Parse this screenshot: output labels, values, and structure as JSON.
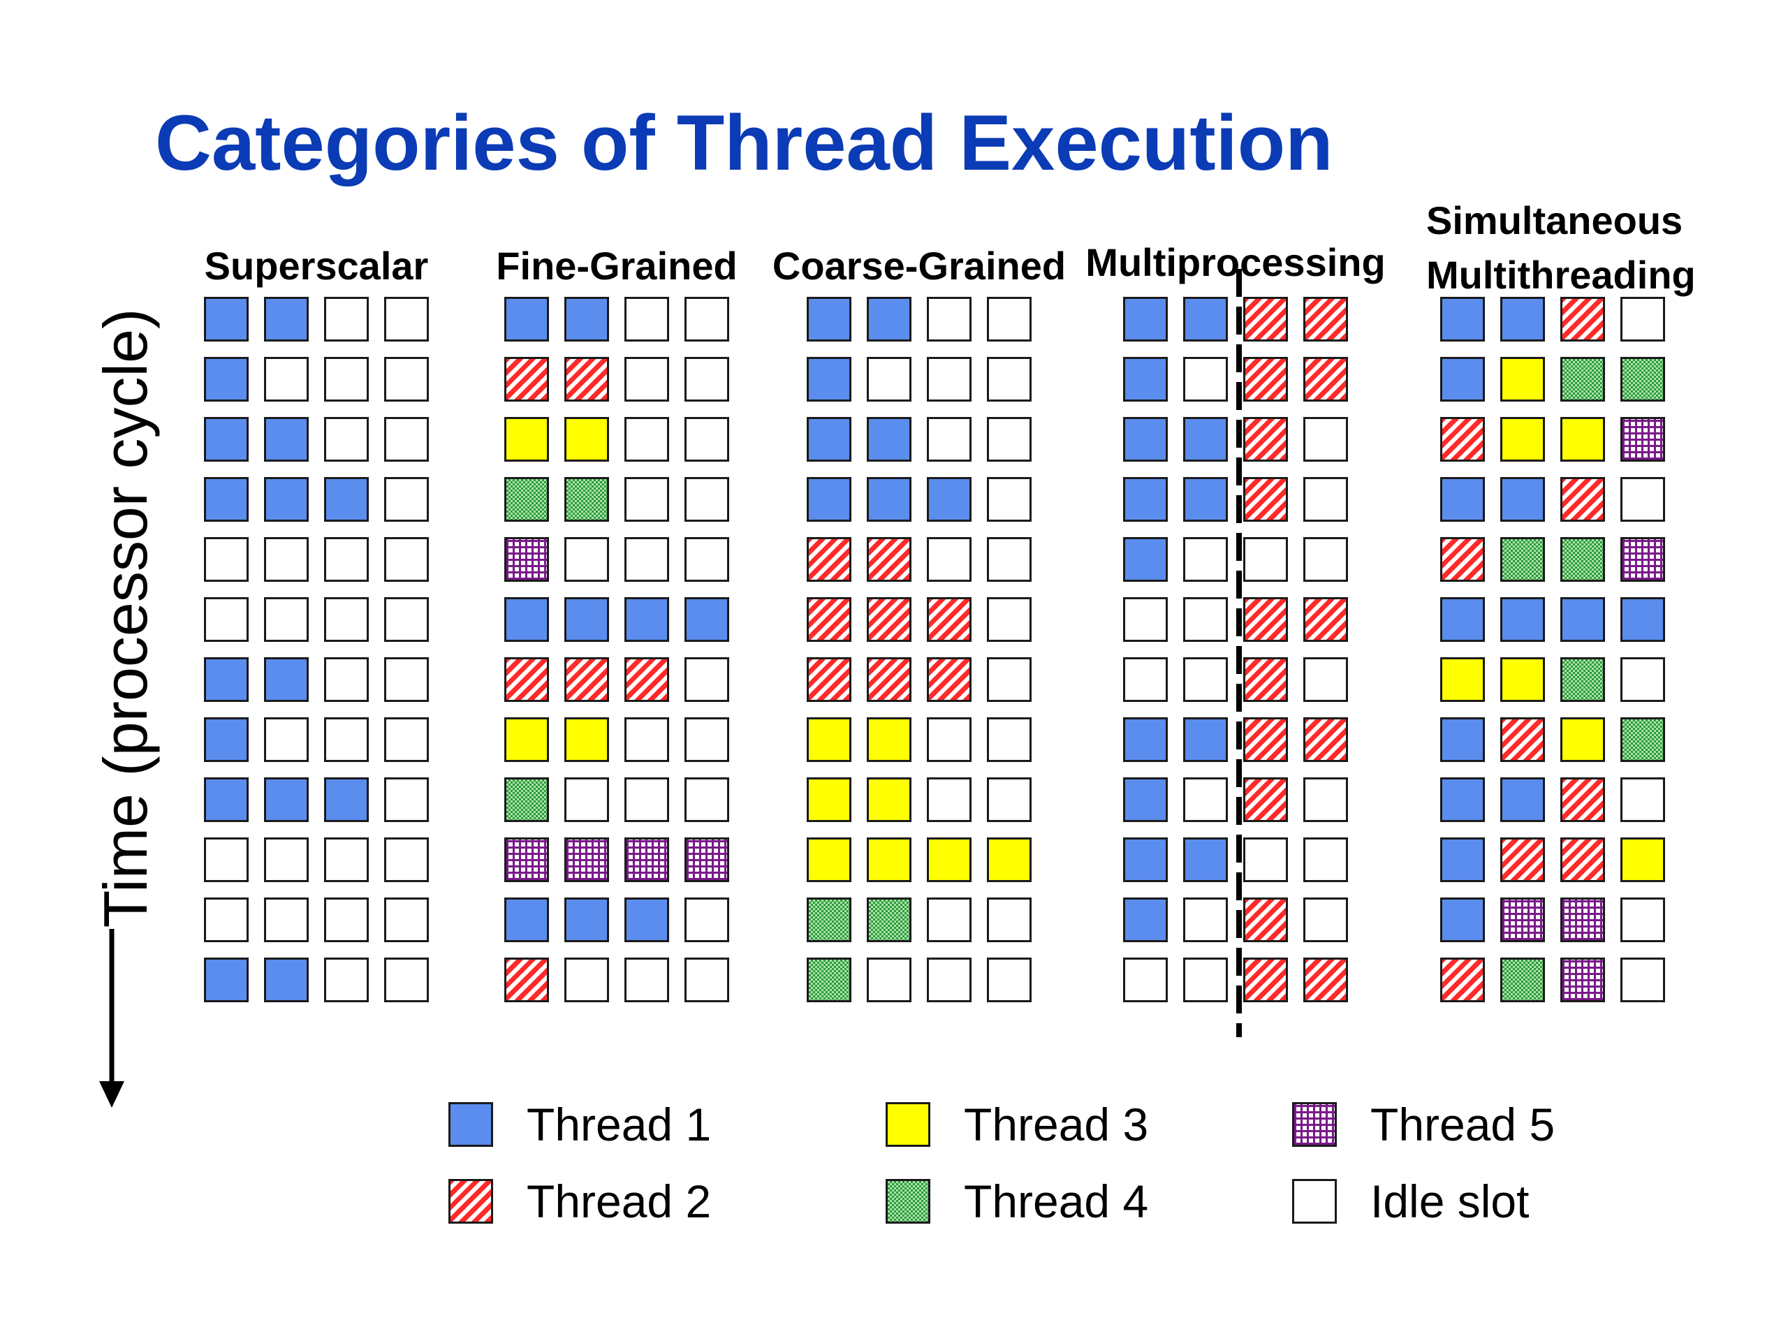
{
  "title": "Categories of Thread Execution",
  "time_axis_label": "Time (processor cycle)",
  "panels": [
    {
      "title": "Superscalar",
      "rows": [
        [
          "t1",
          "t1",
          "idle",
          "idle"
        ],
        [
          "t1",
          "idle",
          "idle",
          "idle"
        ],
        [
          "t1",
          "t1",
          "idle",
          "idle"
        ],
        [
          "t1",
          "t1",
          "t1",
          "idle"
        ],
        [
          "idle",
          "idle",
          "idle",
          "idle"
        ],
        [
          "idle",
          "idle",
          "idle",
          "idle"
        ],
        [
          "t1",
          "t1",
          "idle",
          "idle"
        ],
        [
          "t1",
          "idle",
          "idle",
          "idle"
        ],
        [
          "t1",
          "t1",
          "t1",
          "idle"
        ],
        [
          "idle",
          "idle",
          "idle",
          "idle"
        ],
        [
          "idle",
          "idle",
          "idle",
          "idle"
        ],
        [
          "t1",
          "t1",
          "idle",
          "idle"
        ]
      ]
    },
    {
      "title": "Fine-Grained",
      "rows": [
        [
          "t1",
          "t1",
          "idle",
          "idle"
        ],
        [
          "t2",
          "t2",
          "idle",
          "idle"
        ],
        [
          "t3",
          "t3",
          "idle",
          "idle"
        ],
        [
          "t4",
          "t4",
          "idle",
          "idle"
        ],
        [
          "t5",
          "idle",
          "idle",
          "idle"
        ],
        [
          "t1",
          "t1",
          "t1",
          "t1"
        ],
        [
          "t2",
          "t2",
          "t2",
          "idle"
        ],
        [
          "t3",
          "t3",
          "idle",
          "idle"
        ],
        [
          "t4",
          "idle",
          "idle",
          "idle"
        ],
        [
          "t5",
          "t5",
          "t5",
          "t5"
        ],
        [
          "t1",
          "t1",
          "t1",
          "idle"
        ],
        [
          "t2",
          "idle",
          "idle",
          "idle"
        ]
      ]
    },
    {
      "title": "Coarse-Grained",
      "rows": [
        [
          "t1",
          "t1",
          "idle",
          "idle"
        ],
        [
          "t1",
          "idle",
          "idle",
          "idle"
        ],
        [
          "t1",
          "t1",
          "idle",
          "idle"
        ],
        [
          "t1",
          "t1",
          "t1",
          "idle"
        ],
        [
          "t2",
          "t2",
          "idle",
          "idle"
        ],
        [
          "t2",
          "t2",
          "t2",
          "idle"
        ],
        [
          "t2",
          "t2",
          "t2",
          "idle"
        ],
        [
          "t3",
          "t3",
          "idle",
          "idle"
        ],
        [
          "t3",
          "t3",
          "idle",
          "idle"
        ],
        [
          "t3",
          "t3",
          "t3",
          "t3"
        ],
        [
          "t4",
          "t4",
          "idle",
          "idle"
        ],
        [
          "t4",
          "idle",
          "idle",
          "idle"
        ]
      ]
    },
    {
      "title": "Multiprocessing",
      "rows": [
        [
          "t1",
          "t1",
          "t2",
          "t2"
        ],
        [
          "t1",
          "idle",
          "t2",
          "t2"
        ],
        [
          "t1",
          "t1",
          "t2",
          "idle"
        ],
        [
          "t1",
          "t1",
          "t2",
          "idle"
        ],
        [
          "t1",
          "idle",
          "idle",
          "idle"
        ],
        [
          "idle",
          "idle",
          "t2",
          "t2"
        ],
        [
          "idle",
          "idle",
          "t2",
          "idle"
        ],
        [
          "t1",
          "t1",
          "t2",
          "t2"
        ],
        [
          "t1",
          "idle",
          "t2",
          "idle"
        ],
        [
          "t1",
          "t1",
          "idle",
          "idle"
        ],
        [
          "t1",
          "idle",
          "t2",
          "idle"
        ],
        [
          "idle",
          "idle",
          "t2",
          "t2"
        ]
      ]
    },
    {
      "title": "Simultaneous\nMultithreading",
      "title_line1": "Simultaneous",
      "title_line2": "Multithreading",
      "rows": [
        [
          "t1",
          "t1",
          "t2",
          "idle"
        ],
        [
          "t1",
          "t3",
          "t4",
          "t4"
        ],
        [
          "t2",
          "t3",
          "t3",
          "t5"
        ],
        [
          "t1",
          "t1",
          "t2",
          "idle"
        ],
        [
          "t2",
          "t4",
          "t4",
          "t5"
        ],
        [
          "t1",
          "t1",
          "t1",
          "t1"
        ],
        [
          "t3",
          "t3",
          "t4",
          "idle"
        ],
        [
          "t1",
          "t2",
          "t3",
          "t4"
        ],
        [
          "t1",
          "t1",
          "t2",
          "idle"
        ],
        [
          "t1",
          "t2",
          "t2",
          "t3"
        ],
        [
          "t1",
          "t5",
          "t5",
          "idle"
        ],
        [
          "t2",
          "t4",
          "t5",
          "idle"
        ]
      ]
    }
  ],
  "legend": [
    {
      "key": "t1",
      "label": "Thread 1"
    },
    {
      "key": "t2",
      "label": "Thread 2"
    },
    {
      "key": "t3",
      "label": "Thread 3"
    },
    {
      "key": "t4",
      "label": "Thread 4"
    },
    {
      "key": "t5",
      "label": "Thread 5"
    },
    {
      "key": "idle",
      "label": "Idle slot"
    }
  ],
  "colors": {
    "title": "#0b3bb5",
    "thread1": "#5b8def",
    "thread2": "#ff2a2a",
    "thread3": "#ffff00",
    "thread4": "#2e9a3c",
    "thread5": "#7a1a8a",
    "idle": "#ffffff"
  }
}
